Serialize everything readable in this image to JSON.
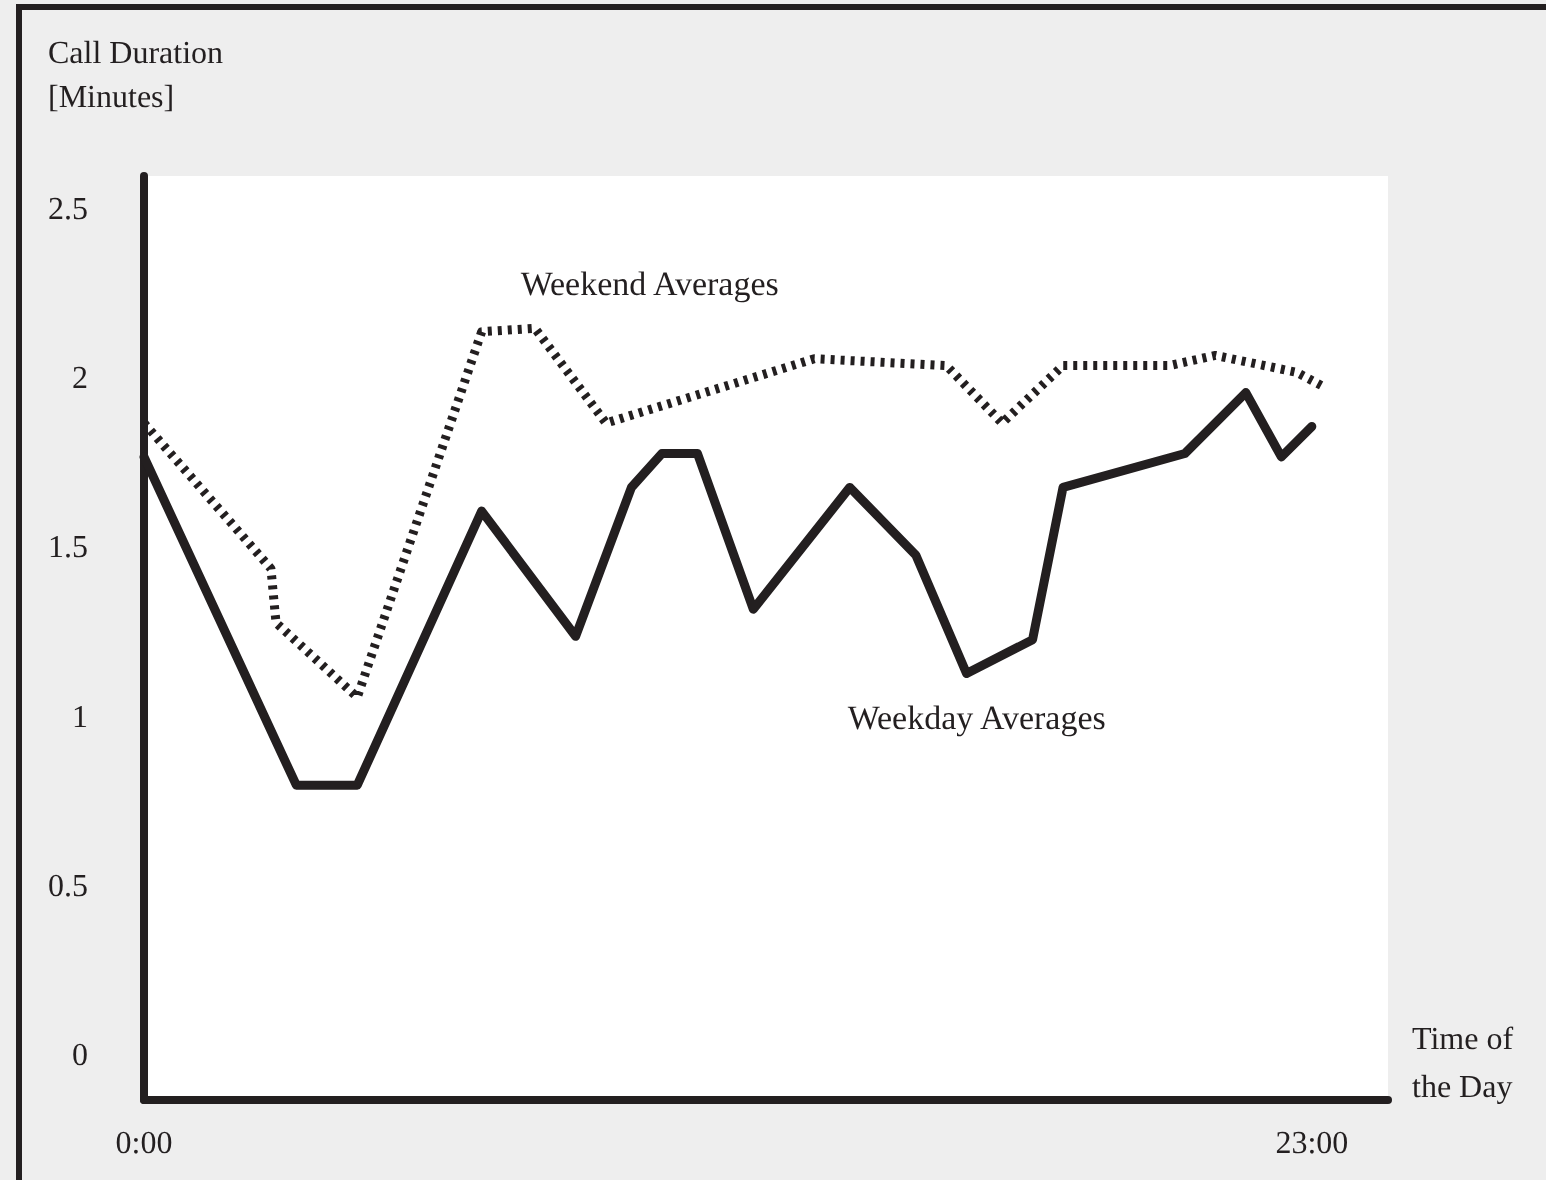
{
  "chart_data": {
    "type": "line",
    "ylabel": "Call Duration\n[Minutes]",
    "xlabel": "Time of\nthe Day",
    "xlim": [
      0,
      24.5
    ],
    "xticks": [
      {
        "value": 0,
        "label": "0:00"
      },
      {
        "value": 23,
        "label": "23:00"
      }
    ],
    "ylim": [
      -0.13,
      2.6
    ],
    "yticks": [
      0,
      0.5,
      1,
      1.5,
      2,
      2.5
    ],
    "grid": false,
    "legend": false,
    "marker": "none",
    "series": [
      {
        "name": "Weekend Averages",
        "color": "#231f20",
        "line_style": "dotted",
        "x": [
          0,
          2.5,
          2.6,
          4.2,
          6.65,
          7.7,
          9.1,
          13.2,
          15.8,
          16.9,
          18.1,
          20.2,
          21.1,
          22.7,
          23.2
        ],
        "values": [
          1.87,
          1.44,
          1.28,
          1.06,
          2.14,
          2.15,
          1.87,
          2.06,
          2.04,
          1.87,
          2.04,
          2.04,
          2.07,
          2.02,
          1.98
        ]
      },
      {
        "name": "Weekday Averages",
        "color": "#231f20",
        "line_style": "solid",
        "x": [
          0,
          3.0,
          4.2,
          6.65,
          8.5,
          9.6,
          10.2,
          10.9,
          12.0,
          13.9,
          15.2,
          16.2,
          17.5,
          18.1,
          20.5,
          21.7,
          22.4,
          23.0
        ],
        "values": [
          1.77,
          0.8,
          0.8,
          1.61,
          1.24,
          1.68,
          1.78,
          1.78,
          1.32,
          1.68,
          1.48,
          1.13,
          1.23,
          1.68,
          1.78,
          1.96,
          1.77,
          1.86
        ]
      }
    ]
  }
}
